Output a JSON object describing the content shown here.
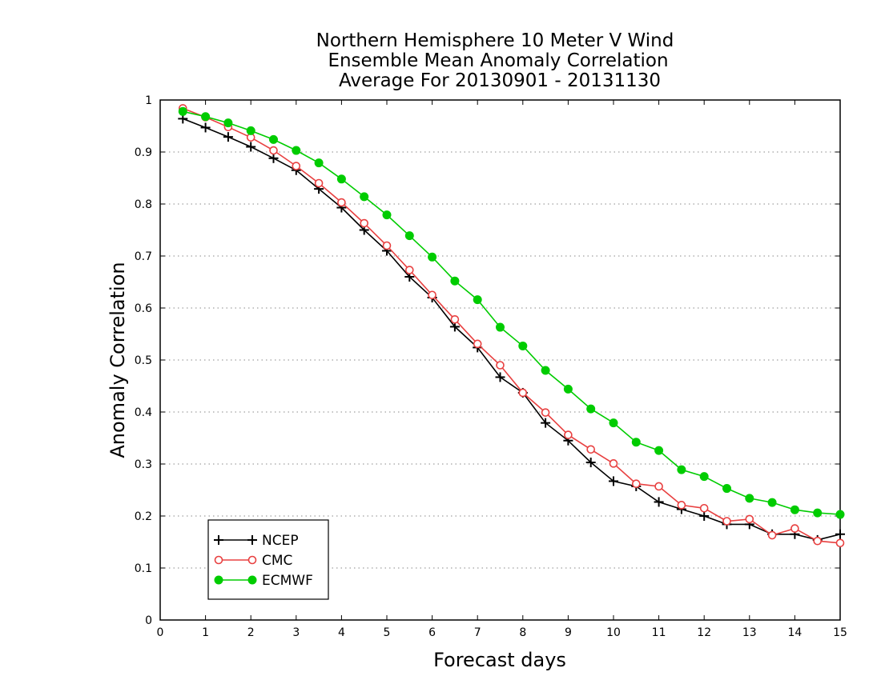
{
  "chart_data": {
    "type": "line",
    "title": [
      "Northern Hemisphere 10 Meter V Wind",
      "Ensemble Mean Anomaly Correlation",
      "Average For 20130901 - 20131130"
    ],
    "xlabel": "Forecast days",
    "ylabel": "Anomaly Correlation",
    "xlim": [
      0,
      15
    ],
    "ylim": [
      0,
      1
    ],
    "xticks": [
      "0",
      "1",
      "2",
      "3",
      "4",
      "5",
      "6",
      "7",
      "8",
      "9",
      "10",
      "11",
      "12",
      "13",
      "14",
      "15"
    ],
    "yticks": [
      "0",
      "0.1",
      "0.2",
      "0.3",
      "0.4",
      "0.5",
      "0.6",
      "0.7",
      "0.8",
      "0.9",
      "1"
    ],
    "grid": "horizontal dotted",
    "legend_position": "bottom-left",
    "x": [
      0.5,
      1,
      1.5,
      2,
      2.5,
      3,
      3.5,
      4,
      4.5,
      5,
      5.5,
      6,
      6.5,
      7,
      7.5,
      8,
      8.5,
      9,
      9.5,
      10,
      10.5,
      11,
      11.5,
      12,
      12.5,
      13,
      13.5,
      14,
      14.5,
      15
    ],
    "series": [
      {
        "name": "NCEP",
        "color": "#000000",
        "marker": "plus",
        "values": [
          0.964,
          0.947,
          0.929,
          0.91,
          0.888,
          0.865,
          0.829,
          0.793,
          0.75,
          0.71,
          0.66,
          0.62,
          0.564,
          0.524,
          0.467,
          0.437,
          0.379,
          0.345,
          0.303,
          0.267,
          0.257,
          0.227,
          0.213,
          0.2,
          0.184,
          0.184,
          0.165,
          0.165,
          0.154,
          0.165
        ]
      },
      {
        "name": "CMC",
        "color": "#e84040",
        "marker": "open-circle",
        "values": [
          0.984,
          0.967,
          0.948,
          0.928,
          0.903,
          0.873,
          0.84,
          0.803,
          0.763,
          0.72,
          0.673,
          0.625,
          0.578,
          0.531,
          0.49,
          0.437,
          0.399,
          0.356,
          0.328,
          0.301,
          0.262,
          0.257,
          0.221,
          0.215,
          0.19,
          0.194,
          0.163,
          0.176,
          0.152,
          0.148
        ]
      },
      {
        "name": "ECMWF",
        "color": "#00cc00",
        "marker": "filled-circle",
        "values": [
          0.978,
          0.968,
          0.956,
          0.941,
          0.924,
          0.903,
          0.879,
          0.848,
          0.814,
          0.779,
          0.739,
          0.698,
          0.652,
          0.616,
          0.563,
          0.527,
          0.48,
          0.444,
          0.406,
          0.379,
          0.342,
          0.326,
          0.289,
          0.276,
          0.253,
          0.234,
          0.226,
          0.212,
          0.206,
          0.203
        ]
      }
    ]
  }
}
